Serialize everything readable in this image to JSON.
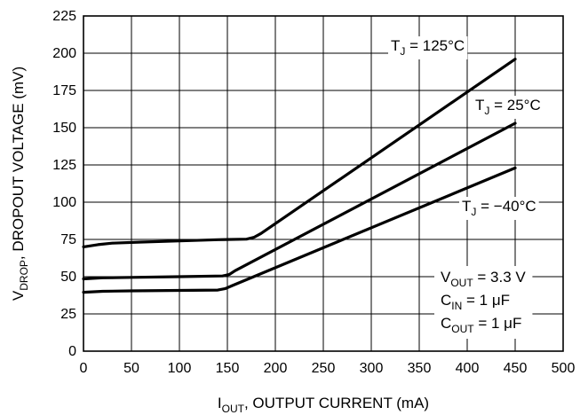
{
  "chart_data": {
    "type": "line",
    "xlabel": {
      "main": "I",
      "sub": "OUT",
      "rest": ", OUTPUT CURRENT (mA)"
    },
    "ylabel": {
      "main": "V",
      "sub": "DROP",
      "rest": ", DROPOUT VOLTAGE (mV)"
    },
    "xlim": [
      0,
      500
    ],
    "ylim": [
      0,
      225
    ],
    "x_ticks": [
      "0",
      "50",
      "100",
      "150",
      "200",
      "250",
      "300",
      "350",
      "400",
      "450",
      "500"
    ],
    "y_ticks": [
      "0",
      "25",
      "50",
      "75",
      "100",
      "125",
      "150",
      "175",
      "200",
      "225"
    ],
    "grid": true,
    "series": [
      {
        "name": {
          "main": "T",
          "sub": "J",
          "rest": " = 125°C"
        },
        "x": [
          0,
          15,
          30,
          60,
          100,
          140,
          170,
          178,
          185,
          450
        ],
        "y": [
          70,
          71.5,
          72.5,
          73.2,
          74,
          74.8,
          75.2,
          76.5,
          79,
          196
        ]
      },
      {
        "name": {
          "main": "T",
          "sub": "J",
          "rest": " = 25°C"
        },
        "x": [
          0,
          20,
          50,
          100,
          145,
          152,
          158,
          450
        ],
        "y": [
          48.5,
          49.2,
          49.5,
          50,
          50.5,
          51.5,
          54,
          153
        ]
      },
      {
        "name": {
          "main": "T",
          "sub": "J",
          "rest": " = −40°C"
        },
        "x": [
          0,
          20,
          50,
          100,
          140,
          148,
          155,
          450
        ],
        "y": [
          39.5,
          40.2,
          40.5,
          40.8,
          41,
          42,
          44,
          123
        ]
      }
    ],
    "annotations": [
      {
        "main": "V",
        "sub": "OUT",
        "rest": " = 3.3 V"
      },
      {
        "main": "C",
        "sub": "IN",
        "rest": " = 1 μF"
      },
      {
        "main": "C",
        "sub": "OUT",
        "rest": " = 1 μF"
      }
    ]
  }
}
